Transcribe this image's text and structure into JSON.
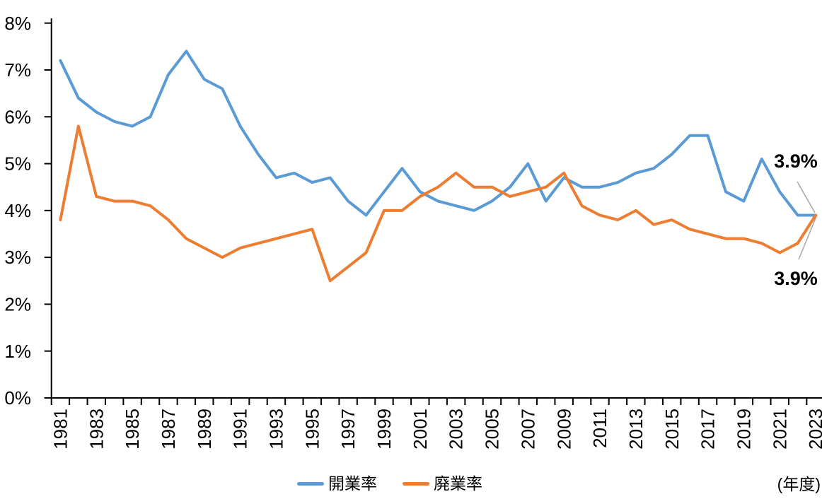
{
  "chart_data": {
    "type": "line",
    "title": "",
    "x": [
      1981,
      1982,
      1983,
      1984,
      1985,
      1986,
      1987,
      1988,
      1989,
      1990,
      1991,
      1992,
      1993,
      1994,
      1995,
      1996,
      1997,
      1998,
      1999,
      2000,
      2001,
      2002,
      2003,
      2004,
      2005,
      2006,
      2007,
      2008,
      2009,
      2010,
      2011,
      2012,
      2013,
      2014,
      2015,
      2016,
      2017,
      2018,
      2019,
      2020,
      2021,
      2022,
      2023
    ],
    "x_tick_labels": [
      "1981",
      "1983",
      "1985",
      "1987",
      "1989",
      "1991",
      "1993",
      "1995",
      "1997",
      "1999",
      "2001",
      "2003",
      "2005",
      "2007",
      "2009",
      "2011",
      "2013",
      "2015",
      "2017",
      "2019",
      "2021",
      "2023"
    ],
    "y_tick_labels": [
      "0%",
      "1%",
      "2%",
      "3%",
      "4%",
      "5%",
      "6%",
      "7%",
      "8%"
    ],
    "ylim": [
      0,
      8
    ],
    "grid": false,
    "legend_position": "bottom",
    "xlabel_unit": "(年度)",
    "axis_color": "#000000",
    "leader_line_color": "#A6A6A6",
    "series": [
      {
        "name": "開業率",
        "color": "#5B9BD5",
        "values": [
          7.2,
          6.4,
          6.1,
          5.9,
          5.8,
          6.0,
          6.9,
          7.4,
          6.8,
          6.6,
          5.8,
          5.2,
          4.7,
          4.8,
          4.6,
          4.7,
          4.2,
          3.9,
          4.4,
          4.9,
          4.4,
          4.2,
          4.1,
          4.0,
          4.2,
          4.5,
          5.0,
          4.2,
          4.7,
          4.5,
          4.5,
          4.6,
          4.8,
          4.9,
          5.2,
          5.6,
          5.6,
          4.4,
          4.2,
          5.1,
          4.4,
          3.9,
          3.9
        ]
      },
      {
        "name": "廃業率",
        "color": "#ED7D31",
        "values": [
          3.8,
          5.8,
          4.3,
          4.2,
          4.2,
          4.1,
          3.8,
          3.4,
          3.2,
          3.0,
          3.2,
          3.3,
          3.4,
          3.5,
          3.6,
          2.5,
          2.8,
          3.1,
          4.0,
          4.0,
          4.3,
          4.5,
          4.8,
          4.5,
          4.5,
          4.3,
          4.4,
          4.5,
          4.8,
          4.1,
          3.9,
          3.8,
          4.0,
          3.7,
          3.8,
          3.6,
          3.5,
          3.4,
          3.4,
          3.3,
          3.1,
          3.3,
          3.9
        ]
      }
    ],
    "annotations": [
      {
        "text": "3.9%",
        "series": "開業率",
        "year": 2023
      },
      {
        "text": "3.9%",
        "series": "廃業率",
        "year": 2023
      }
    ]
  }
}
